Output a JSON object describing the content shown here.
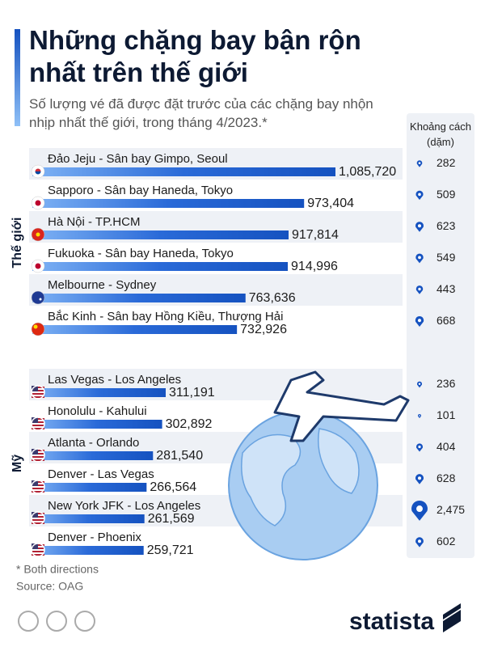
{
  "chart_data": {
    "type": "bar",
    "title": "Những chặng bay bận rộn nhất trên thế giới",
    "subtitle": "Số lượng vé đã được đặt trước của các chặng bay nhộn nhịp nhất thế giới, trong tháng 4/2023.*",
    "distance_header": "Khoảng cách (dặm)",
    "color": "#1552c0",
    "groups": [
      {
        "name": "Thế giới",
        "categories": [
          "Đảo Jeju - Sân bay Gimpo, Seoul",
          "Sapporo - Sân bay Haneda, Tokyo",
          "Hà Nội - TP.HCM",
          "Fukuoka - Sân bay Haneda, Tokyo",
          "Melbourne - Sydney",
          "Bắc Kinh - Sân bay Hồng Kiều, Thượng Hải"
        ],
        "values": [
          1085720,
          973404,
          917814,
          914996,
          763636,
          732926
        ],
        "value_labels": [
          "1,085,720",
          "973,404",
          "917,814",
          "914,996",
          "763,636",
          "732,926"
        ],
        "distances": [
          282,
          509,
          623,
          549,
          443,
          668
        ],
        "distance_labels": [
          "282",
          "509",
          "623",
          "549",
          "443",
          "668"
        ]
      },
      {
        "name": "Mỹ",
        "categories": [
          "Las Vegas - Los Angeles",
          "Honolulu - Kahului",
          "Atlanta - Orlando",
          "Denver - Las Vegas",
          "New York JFK - Los Angeles",
          "Denver - Phoenix"
        ],
        "values": [
          311191,
          302892,
          281540,
          266564,
          261569,
          259721
        ],
        "value_labels": [
          "311,191",
          "302,892",
          "281,540",
          "266,564",
          "261,569",
          "259,721"
        ],
        "distances": [
          236,
          101,
          404,
          628,
          2475,
          602
        ],
        "distance_labels": [
          "236",
          "101",
          "404",
          "628",
          "2,475",
          "602"
        ]
      }
    ],
    "notes": [
      "* Both directions",
      "Source: OAG"
    ],
    "brand": "statista"
  }
}
